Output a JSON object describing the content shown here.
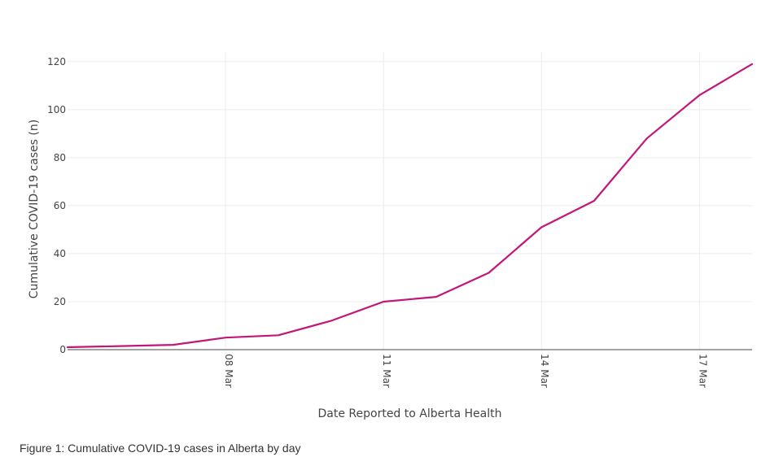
{
  "caption": "Figure 1: Cumulative COVID-19 cases in Alberta by day",
  "chart_data": {
    "type": "line",
    "xlabel": "Date Reported to Alberta Health",
    "ylabel": "Cumulative COVID-19 cases (n)",
    "x": [
      "2020-03-05",
      "2020-03-06",
      "2020-03-07",
      "2020-03-08",
      "2020-03-09",
      "2020-03-10",
      "2020-03-11",
      "2020-03-12",
      "2020-03-13",
      "2020-03-14",
      "2020-03-15",
      "2020-03-16",
      "2020-03-17",
      "2020-03-18"
    ],
    "series": [
      {
        "values": [
          1,
          1.5,
          2,
          5,
          6,
          12,
          20,
          22,
          32,
          51,
          62,
          88,
          106,
          119
        ],
        "color": "#c2177a"
      }
    ],
    "xlim": [
      "2020-03-05",
      "2020-03-18"
    ],
    "ylim": [
      0,
      124
    ],
    "xticks": [
      "2020-03-08",
      "2020-03-11",
      "2020-03-14",
      "2020-03-17"
    ],
    "xtick_labels": [
      "08 Mar",
      "11 Mar",
      "14 Mar",
      "17 Mar"
    ],
    "yticks": [
      0,
      20,
      40,
      60,
      80,
      100,
      120
    ],
    "ytick_labels": [
      "0",
      "20",
      "40",
      "60",
      "80",
      "100",
      "120"
    ],
    "grid": true,
    "legend": "none"
  }
}
